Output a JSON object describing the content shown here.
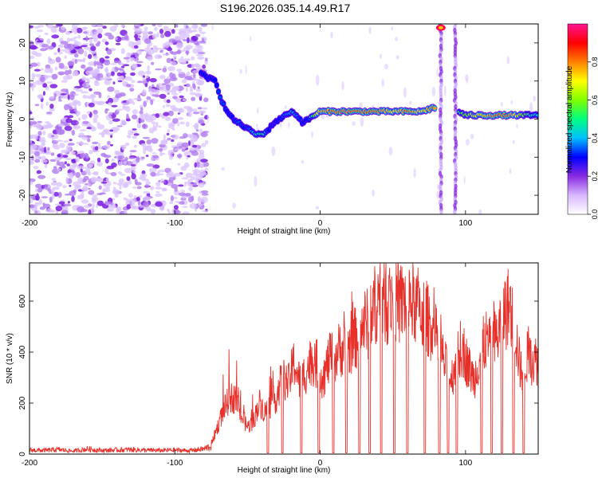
{
  "figure_title": "S196.2026.035.14.49.R17",
  "chart_data": [
    {
      "type": "heatmap",
      "title": "S196.2026.035.14.49.R17",
      "xlabel": "Height of straight line (km)",
      "ylabel": "Frequency (Hz)",
      "xlim": [
        -200,
        150
      ],
      "ylim": [
        -25,
        25
      ],
      "xticks": [
        -200,
        -100,
        0,
        100
      ],
      "xtick_labels": [
        "-200",
        "-100",
        "0",
        "100"
      ],
      "yticks": [
        -20,
        -10,
        0,
        10,
        20
      ],
      "ytick_labels": [
        "-20",
        "-10",
        "0",
        "10",
        "20"
      ],
      "colorbar": {
        "label": "Normalized spectral amplitude",
        "range": [
          0.0,
          1.0
        ],
        "ticks": [
          0.0,
          0.2,
          0.4,
          0.6,
          0.8
        ],
        "tick_labels": [
          "0.0",
          "0.2",
          "0.4",
          "0.6",
          "0.8"
        ],
        "colormap": [
          "#ffffff",
          "#d8b8ff",
          "#8a2be2",
          "#0000ff",
          "#00bfff",
          "#00ff80",
          "#7fff00",
          "#ffff00",
          "#ff8000",
          "#ff0000",
          "#ff1493"
        ]
      },
      "noise_region_x": [
        -200,
        -78
      ],
      "signal_track": {
        "x": [
          -82,
          -78,
          -72,
          -68,
          -64,
          -60,
          -56,
          -52,
          -48,
          -44,
          -40,
          -36,
          -32,
          -28,
          -24,
          -20,
          -16,
          -12,
          -8,
          -4,
          0,
          10,
          20,
          30,
          40,
          50,
          60,
          70,
          78,
          95,
          100,
          110,
          120,
          130,
          140,
          150
        ],
        "frequency": [
          12,
          11,
          10,
          5,
          2,
          0,
          -1,
          -2,
          -3,
          -4,
          -4,
          -3,
          -1,
          0,
          1,
          2,
          1,
          -1,
          0,
          1,
          2,
          2,
          2,
          2,
          2,
          2,
          2,
          2,
          3,
          2,
          1,
          1,
          1,
          1,
          1,
          1
        ],
        "amplitude": [
          0.3,
          0.3,
          0.3,
          0.35,
          0.3,
          0.3,
          0.35,
          0.3,
          0.35,
          0.45,
          0.5,
          0.3,
          0.25,
          0.3,
          0.35,
          0.4,
          0.35,
          0.3,
          0.3,
          0.6,
          0.75,
          0.8,
          0.8,
          0.8,
          0.8,
          0.7,
          0.8,
          0.7,
          0.8,
          0.5,
          0.6,
          0.7,
          0.8,
          0.8,
          0.6,
          0.4
        ]
      },
      "vertical_streaks_x": [
        83,
        93
      ],
      "streak_hot_spot": {
        "x": 83,
        "frequency": 24
      }
    },
    {
      "type": "line",
      "xlabel": "Height of straight line (km)",
      "ylabel": "SNR (10 * v/v)",
      "xlim": [
        -200,
        150
      ],
      "ylim": [
        0,
        750
      ],
      "xticks": [
        -200,
        -100,
        0,
        100
      ],
      "xtick_labels": [
        "-200",
        "-100",
        "0",
        "100"
      ],
      "yticks": [
        0,
        200,
        400,
        600
      ],
      "ytick_labels": [
        "0",
        "200",
        "400",
        "600"
      ],
      "line_color": "#e8302a",
      "series": [
        {
          "name": "SNR",
          "x": [
            -200,
            -190,
            -180,
            -170,
            -160,
            -150,
            -140,
            -130,
            -120,
            -110,
            -100,
            -90,
            -80,
            -75,
            -70,
            -66,
            -62,
            -58,
            -54,
            -50,
            -46,
            -42,
            -38,
            -34,
            -30,
            -26,
            -22,
            -18,
            -14,
            -10,
            -6,
            -2,
            2,
            6,
            10,
            14,
            18,
            22,
            26,
            30,
            34,
            38,
            42,
            46,
            50,
            54,
            58,
            62,
            66,
            70,
            74,
            78,
            82,
            86,
            90,
            94,
            98,
            102,
            106,
            110,
            114,
            118,
            122,
            126,
            130,
            134,
            138,
            142,
            146,
            150
          ],
          "values": [
            20,
            18,
            22,
            15,
            25,
            18,
            20,
            22,
            19,
            18,
            20,
            17,
            25,
            40,
            120,
            180,
            230,
            220,
            150,
            110,
            130,
            210,
            170,
            200,
            230,
            310,
            280,
            370,
            290,
            330,
            380,
            360,
            300,
            380,
            390,
            430,
            410,
            450,
            480,
            530,
            520,
            610,
            640,
            600,
            640,
            600,
            620,
            610,
            600,
            580,
            540,
            500,
            430,
            360,
            300,
            380,
            430,
            350,
            300,
            400,
            460,
            420,
            480,
            560,
            600,
            500,
            330,
            390,
            380,
            380
          ],
          "dropouts_x": [
            -36,
            -26,
            -13,
            -1,
            9,
            18,
            27,
            34,
            42,
            51,
            60,
            72,
            82,
            88,
            94,
            111,
            118,
            125,
            133,
            140
          ]
        }
      ]
    }
  ]
}
